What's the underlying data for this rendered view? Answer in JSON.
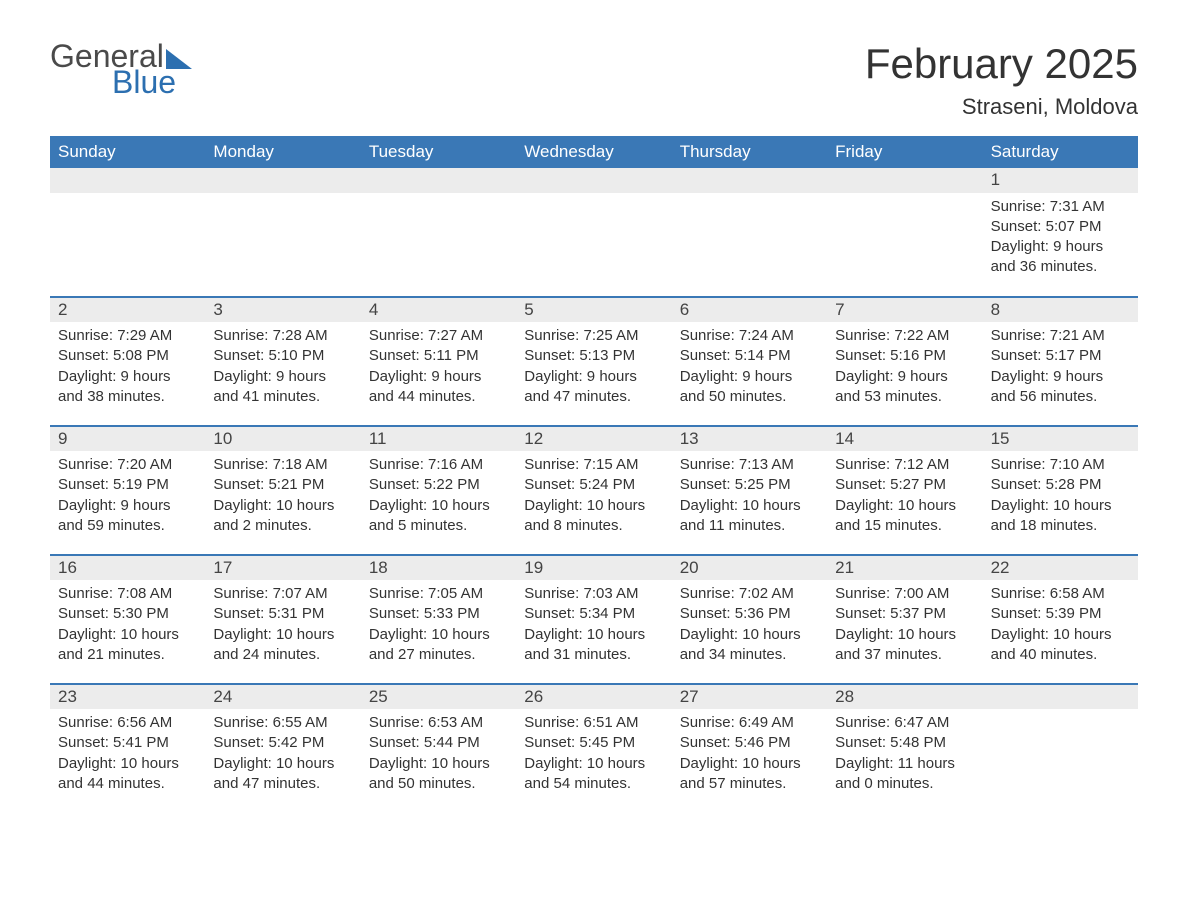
{
  "brand": {
    "word1": "General",
    "word2": "Blue"
  },
  "title": "February 2025",
  "location": "Straseni, Moldova",
  "colors": {
    "header_bg": "#3a78b6",
    "header_text": "#ffffff",
    "band_bg": "#ececec",
    "rule": "#3a78b6",
    "body_text": "#333333",
    "logo_gray": "#4a4a4a",
    "logo_blue": "#2c6fb0",
    "page_bg": "#ffffff"
  },
  "typography": {
    "title_fontsize": 42,
    "location_fontsize": 22,
    "weekday_fontsize": 17,
    "body_fontsize": 15
  },
  "weekdays": [
    "Sunday",
    "Monday",
    "Tuesday",
    "Wednesday",
    "Thursday",
    "Friday",
    "Saturday"
  ],
  "weeks": [
    [
      {
        "day": "",
        "sunrise": "",
        "sunset": "",
        "daylight1": "",
        "daylight2": ""
      },
      {
        "day": "",
        "sunrise": "",
        "sunset": "",
        "daylight1": "",
        "daylight2": ""
      },
      {
        "day": "",
        "sunrise": "",
        "sunset": "",
        "daylight1": "",
        "daylight2": ""
      },
      {
        "day": "",
        "sunrise": "",
        "sunset": "",
        "daylight1": "",
        "daylight2": ""
      },
      {
        "day": "",
        "sunrise": "",
        "sunset": "",
        "daylight1": "",
        "daylight2": ""
      },
      {
        "day": "",
        "sunrise": "",
        "sunset": "",
        "daylight1": "",
        "daylight2": ""
      },
      {
        "day": "1",
        "sunrise": "Sunrise: 7:31 AM",
        "sunset": "Sunset: 5:07 PM",
        "daylight1": "Daylight: 9 hours",
        "daylight2": "and 36 minutes."
      }
    ],
    [
      {
        "day": "2",
        "sunrise": "Sunrise: 7:29 AM",
        "sunset": "Sunset: 5:08 PM",
        "daylight1": "Daylight: 9 hours",
        "daylight2": "and 38 minutes."
      },
      {
        "day": "3",
        "sunrise": "Sunrise: 7:28 AM",
        "sunset": "Sunset: 5:10 PM",
        "daylight1": "Daylight: 9 hours",
        "daylight2": "and 41 minutes."
      },
      {
        "day": "4",
        "sunrise": "Sunrise: 7:27 AM",
        "sunset": "Sunset: 5:11 PM",
        "daylight1": "Daylight: 9 hours",
        "daylight2": "and 44 minutes."
      },
      {
        "day": "5",
        "sunrise": "Sunrise: 7:25 AM",
        "sunset": "Sunset: 5:13 PM",
        "daylight1": "Daylight: 9 hours",
        "daylight2": "and 47 minutes."
      },
      {
        "day": "6",
        "sunrise": "Sunrise: 7:24 AM",
        "sunset": "Sunset: 5:14 PM",
        "daylight1": "Daylight: 9 hours",
        "daylight2": "and 50 minutes."
      },
      {
        "day": "7",
        "sunrise": "Sunrise: 7:22 AM",
        "sunset": "Sunset: 5:16 PM",
        "daylight1": "Daylight: 9 hours",
        "daylight2": "and 53 minutes."
      },
      {
        "day": "8",
        "sunrise": "Sunrise: 7:21 AM",
        "sunset": "Sunset: 5:17 PM",
        "daylight1": "Daylight: 9 hours",
        "daylight2": "and 56 minutes."
      }
    ],
    [
      {
        "day": "9",
        "sunrise": "Sunrise: 7:20 AM",
        "sunset": "Sunset: 5:19 PM",
        "daylight1": "Daylight: 9 hours",
        "daylight2": "and 59 minutes."
      },
      {
        "day": "10",
        "sunrise": "Sunrise: 7:18 AM",
        "sunset": "Sunset: 5:21 PM",
        "daylight1": "Daylight: 10 hours",
        "daylight2": "and 2 minutes."
      },
      {
        "day": "11",
        "sunrise": "Sunrise: 7:16 AM",
        "sunset": "Sunset: 5:22 PM",
        "daylight1": "Daylight: 10 hours",
        "daylight2": "and 5 minutes."
      },
      {
        "day": "12",
        "sunrise": "Sunrise: 7:15 AM",
        "sunset": "Sunset: 5:24 PM",
        "daylight1": "Daylight: 10 hours",
        "daylight2": "and 8 minutes."
      },
      {
        "day": "13",
        "sunrise": "Sunrise: 7:13 AM",
        "sunset": "Sunset: 5:25 PM",
        "daylight1": "Daylight: 10 hours",
        "daylight2": "and 11 minutes."
      },
      {
        "day": "14",
        "sunrise": "Sunrise: 7:12 AM",
        "sunset": "Sunset: 5:27 PM",
        "daylight1": "Daylight: 10 hours",
        "daylight2": "and 15 minutes."
      },
      {
        "day": "15",
        "sunrise": "Sunrise: 7:10 AM",
        "sunset": "Sunset: 5:28 PM",
        "daylight1": "Daylight: 10 hours",
        "daylight2": "and 18 minutes."
      }
    ],
    [
      {
        "day": "16",
        "sunrise": "Sunrise: 7:08 AM",
        "sunset": "Sunset: 5:30 PM",
        "daylight1": "Daylight: 10 hours",
        "daylight2": "and 21 minutes."
      },
      {
        "day": "17",
        "sunrise": "Sunrise: 7:07 AM",
        "sunset": "Sunset: 5:31 PM",
        "daylight1": "Daylight: 10 hours",
        "daylight2": "and 24 minutes."
      },
      {
        "day": "18",
        "sunrise": "Sunrise: 7:05 AM",
        "sunset": "Sunset: 5:33 PM",
        "daylight1": "Daylight: 10 hours",
        "daylight2": "and 27 minutes."
      },
      {
        "day": "19",
        "sunrise": "Sunrise: 7:03 AM",
        "sunset": "Sunset: 5:34 PM",
        "daylight1": "Daylight: 10 hours",
        "daylight2": "and 31 minutes."
      },
      {
        "day": "20",
        "sunrise": "Sunrise: 7:02 AM",
        "sunset": "Sunset: 5:36 PM",
        "daylight1": "Daylight: 10 hours",
        "daylight2": "and 34 minutes."
      },
      {
        "day": "21",
        "sunrise": "Sunrise: 7:00 AM",
        "sunset": "Sunset: 5:37 PM",
        "daylight1": "Daylight: 10 hours",
        "daylight2": "and 37 minutes."
      },
      {
        "day": "22",
        "sunrise": "Sunrise: 6:58 AM",
        "sunset": "Sunset: 5:39 PM",
        "daylight1": "Daylight: 10 hours",
        "daylight2": "and 40 minutes."
      }
    ],
    [
      {
        "day": "23",
        "sunrise": "Sunrise: 6:56 AM",
        "sunset": "Sunset: 5:41 PM",
        "daylight1": "Daylight: 10 hours",
        "daylight2": "and 44 minutes."
      },
      {
        "day": "24",
        "sunrise": "Sunrise: 6:55 AM",
        "sunset": "Sunset: 5:42 PM",
        "daylight1": "Daylight: 10 hours",
        "daylight2": "and 47 minutes."
      },
      {
        "day": "25",
        "sunrise": "Sunrise: 6:53 AM",
        "sunset": "Sunset: 5:44 PM",
        "daylight1": "Daylight: 10 hours",
        "daylight2": "and 50 minutes."
      },
      {
        "day": "26",
        "sunrise": "Sunrise: 6:51 AM",
        "sunset": "Sunset: 5:45 PM",
        "daylight1": "Daylight: 10 hours",
        "daylight2": "and 54 minutes."
      },
      {
        "day": "27",
        "sunrise": "Sunrise: 6:49 AM",
        "sunset": "Sunset: 5:46 PM",
        "daylight1": "Daylight: 10 hours",
        "daylight2": "and 57 minutes."
      },
      {
        "day": "28",
        "sunrise": "Sunrise: 6:47 AM",
        "sunset": "Sunset: 5:48 PM",
        "daylight1": "Daylight: 11 hours",
        "daylight2": "and 0 minutes."
      },
      {
        "day": "",
        "sunrise": "",
        "sunset": "",
        "daylight1": "",
        "daylight2": ""
      }
    ]
  ]
}
